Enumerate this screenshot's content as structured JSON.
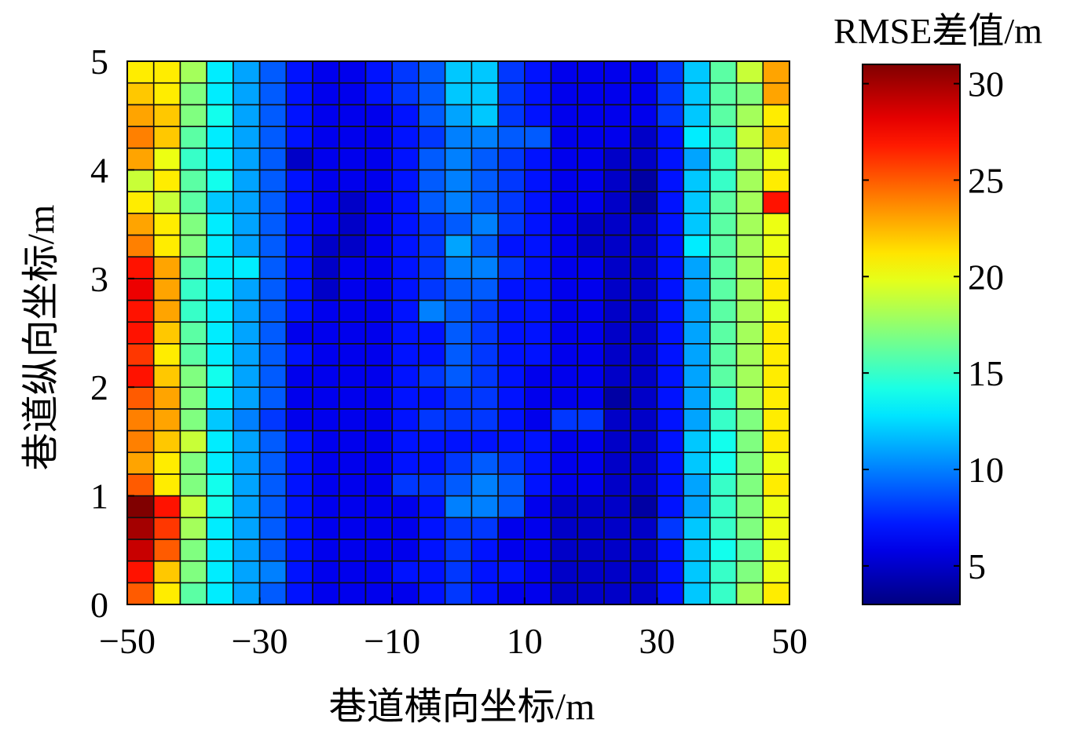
{
  "chart_data": {
    "type": "heatmap",
    "xlabel": "巷道横向坐标/m",
    "ylabel": "巷道纵向坐标/m",
    "colorbar_label": "RMSE差值/m",
    "colormap": "jet",
    "xlim": [
      -50,
      50
    ],
    "ylim": [
      0,
      5
    ],
    "clim": [
      3,
      31
    ],
    "x_ticks": [
      -50,
      -30,
      -10,
      10,
      30,
      50
    ],
    "x_tick_labels": [
      "−50",
      "−30",
      "−10",
      "10",
      "30",
      "50"
    ],
    "y_ticks": [
      0,
      1,
      2,
      3,
      4,
      5
    ],
    "y_tick_labels": [
      "0",
      "1",
      "2",
      "3",
      "4",
      "5"
    ],
    "colorbar_ticks": [
      5,
      10,
      15,
      20,
      25,
      30
    ],
    "colorbar_tick_labels": [
      "5",
      "10",
      "15",
      "20",
      "25",
      "30"
    ],
    "grid_lines": true,
    "x_centers": [
      -48,
      -44,
      -40,
      -36,
      -32,
      -28,
      -24,
      -20,
      -16,
      -12,
      -8,
      -4,
      0,
      4,
      8,
      12,
      16,
      20,
      24,
      28,
      32,
      36,
      40,
      44,
      48
    ],
    "y_centers": [
      0.1,
      0.3,
      0.5,
      0.7,
      0.9,
      1.1,
      1.3,
      1.5,
      1.7,
      1.9,
      2.1,
      2.3,
      2.5,
      2.7,
      2.9,
      3.1,
      3.3,
      3.5,
      3.7,
      3.9,
      4.1,
      4.3,
      4.5,
      4.7,
      4.9
    ],
    "values": [
      [
        25,
        21,
        16,
        13,
        11,
        9,
        7,
        6,
        6,
        6,
        6,
        7,
        8,
        7,
        6,
        6,
        5,
        5,
        5,
        5,
        7,
        12,
        15,
        18,
        21
      ],
      [
        27,
        22,
        17,
        13,
        11,
        10,
        7,
        6,
        6,
        6,
        7,
        7,
        8,
        7,
        7,
        6,
        5,
        5,
        5,
        5,
        7,
        12,
        15,
        17,
        20
      ],
      [
        29,
        25,
        17,
        13,
        11,
        9,
        7,
        6,
        6,
        6,
        6,
        7,
        8,
        7,
        6,
        6,
        5,
        5,
        5,
        5,
        7,
        12,
        14,
        16,
        20
      ],
      [
        30,
        26,
        18,
        13,
        11,
        9,
        7,
        6,
        6,
        6,
        6,
        7,
        8,
        8,
        6,
        6,
        5,
        5,
        5,
        5,
        8,
        12,
        15,
        17,
        20
      ],
      [
        31,
        27,
        19,
        14,
        11,
        9,
        7,
        6,
        6,
        6,
        6,
        7,
        10,
        10,
        9,
        6,
        5,
        5,
        5,
        4,
        7,
        11,
        15,
        17,
        20
      ],
      [
        25,
        21,
        17,
        14,
        11,
        9,
        7,
        6,
        6,
        6,
        8,
        8,
        9,
        10,
        9,
        7,
        6,
        6,
        5,
        5,
        7,
        11,
        15,
        17,
        21
      ],
      [
        23,
        21,
        17,
        13,
        11,
        9,
        7,
        6,
        6,
        6,
        7,
        7,
        8,
        9,
        8,
        7,
        6,
        6,
        5,
        5,
        7,
        12,
        14,
        17,
        20
      ],
      [
        24,
        22,
        19,
        13,
        11,
        9,
        7,
        6,
        6,
        6,
        7,
        7,
        7,
        7,
        7,
        7,
        6,
        6,
        5,
        5,
        7,
        12,
        14,
        17,
        21
      ],
      [
        24,
        23,
        17,
        12,
        10,
        8,
        6,
        6,
        6,
        6,
        7,
        8,
        8,
        8,
        7,
        6,
        8,
        8,
        5,
        5,
        7,
        11,
        15,
        17,
        21
      ],
      [
        25,
        23,
        17,
        13,
        11,
        9,
        6,
        6,
        6,
        6,
        7,
        7,
        8,
        8,
        7,
        6,
        6,
        6,
        4,
        5,
        7,
        11,
        15,
        18,
        21
      ],
      [
        27,
        22,
        17,
        14,
        11,
        9,
        6,
        6,
        6,
        6,
        7,
        8,
        9,
        8,
        7,
        6,
        6,
        6,
        5,
        5,
        7,
        11,
        16,
        18,
        21
      ],
      [
        26,
        21,
        16,
        13,
        11,
        9,
        7,
        6,
        6,
        6,
        7,
        7,
        9,
        8,
        7,
        7,
        6,
        6,
        5,
        5,
        7,
        11,
        16,
        18,
        21
      ],
      [
        27,
        22,
        16,
        13,
        11,
        9,
        6,
        6,
        6,
        6,
        7,
        7,
        9,
        8,
        7,
        7,
        6,
        6,
        5,
        5,
        7,
        11,
        16,
        18,
        21
      ],
      [
        27,
        23,
        15,
        13,
        11,
        9,
        7,
        6,
        6,
        6,
        7,
        10,
        9,
        8,
        7,
        7,
        6,
        6,
        5,
        5,
        7,
        11,
        16,
        18,
        20
      ],
      [
        28,
        23,
        15,
        13,
        11,
        9,
        7,
        5,
        6,
        6,
        7,
        8,
        9,
        9,
        7,
        7,
        6,
        6,
        5,
        5,
        7,
        11,
        16,
        18,
        21
      ],
      [
        27,
        23,
        16,
        13,
        13,
        9,
        7,
        5,
        6,
        6,
        7,
        8,
        10,
        10,
        8,
        7,
        6,
        6,
        5,
        5,
        7,
        11,
        16,
        18,
        21
      ],
      [
        24,
        21,
        17,
        13,
        11,
        9,
        7,
        5,
        5,
        6,
        7,
        8,
        11,
        9,
        7,
        7,
        6,
        5,
        5,
        5,
        7,
        13,
        16,
        18,
        20
      ],
      [
        23,
        21,
        17,
        13,
        11,
        9,
        7,
        6,
        5,
        6,
        7,
        8,
        9,
        10,
        8,
        7,
        6,
        5,
        5,
        5,
        7,
        12,
        16,
        18,
        20
      ],
      [
        21,
        19,
        16,
        12,
        11,
        9,
        7,
        6,
        5,
        6,
        7,
        9,
        10,
        9,
        8,
        7,
        6,
        6,
        5,
        4,
        7,
        12,
        16,
        18,
        27
      ],
      [
        19,
        21,
        16,
        14,
        11,
        9,
        7,
        6,
        6,
        6,
        7,
        9,
        10,
        9,
        8,
        7,
        6,
        6,
        5,
        4,
        7,
        12,
        15,
        18,
        21
      ],
      [
        23,
        20,
        15,
        13,
        11,
        9,
        5,
        6,
        6,
        6,
        7,
        9,
        10,
        9,
        8,
        7,
        6,
        6,
        5,
        5,
        7,
        11,
        15,
        18,
        20
      ],
      [
        24,
        22,
        16,
        13,
        11,
        9,
        7,
        6,
        6,
        6,
        7,
        8,
        10,
        10,
        9,
        9,
        6,
        6,
        6,
        5,
        7,
        13,
        15,
        19,
        22
      ],
      [
        23,
        22,
        17,
        14,
        11,
        9,
        7,
        6,
        6,
        6,
        7,
        9,
        11,
        12,
        8,
        7,
        6,
        6,
        6,
        6,
        8,
        12,
        16,
        18,
        21
      ],
      [
        22,
        21,
        17,
        13,
        11,
        9,
        7,
        6,
        6,
        7,
        8,
        9,
        12,
        12,
        8,
        7,
        6,
        6,
        6,
        6,
        8,
        12,
        16,
        17,
        23
      ],
      [
        21,
        21,
        18,
        13,
        11,
        9,
        7,
        6,
        6,
        7,
        8,
        9,
        12,
        12,
        8,
        7,
        6,
        6,
        6,
        6,
        8,
        12,
        16,
        19,
        23
      ]
    ]
  }
}
